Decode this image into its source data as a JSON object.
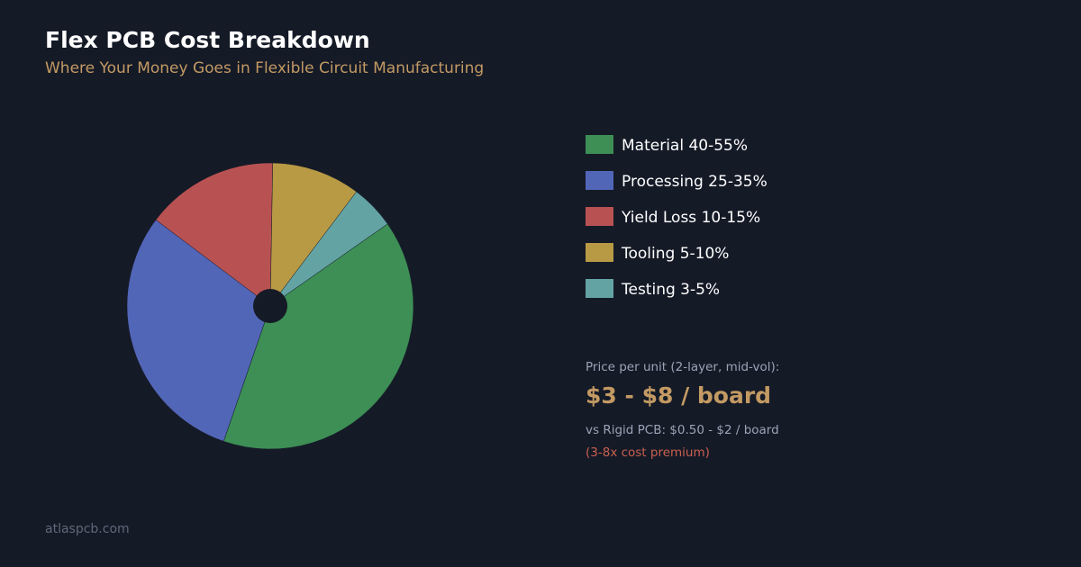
{
  "chart_data": {
    "type": "pie",
    "title": "Flex PCB Cost Breakdown",
    "subtitle": "Where Your Money Goes in Flexible Circuit Manufacturing",
    "categories": [
      "Material 40-55%",
      "Processing 25-35%",
      "Yield Loss 10-15%",
      "Tooling 5-10%",
      "Testing 3-5%"
    ],
    "values": [
      40,
      30,
      15,
      10,
      5
    ],
    "colors": [
      "#3d8f55",
      "#5266b8",
      "#b85252",
      "#b89a45",
      "#64a3a3"
    ],
    "annotations": {
      "price_label": "Price per unit (2-layer, mid-vol):",
      "price": "$3 - $8 / board",
      "comparison": "vs Rigid PCB: $0.50 - $2 / board",
      "premium": "(3-8x cost premium)"
    },
    "footer": "atlaspcb.com"
  }
}
